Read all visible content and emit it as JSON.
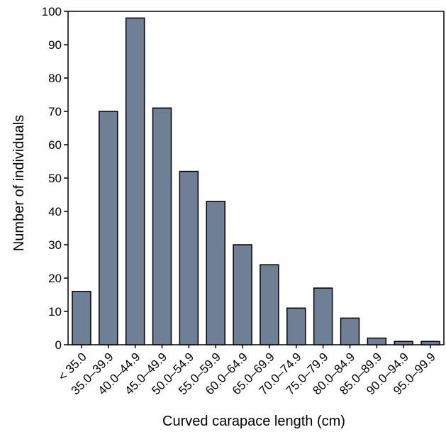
{
  "chart_data": {
    "type": "bar",
    "xlabel": "Curved carapace length (cm)",
    "ylabel": "Number of individuals",
    "ylim": [
      0,
      100
    ],
    "yticks": [
      0,
      10,
      20,
      30,
      40,
      50,
      60,
      70,
      80,
      90,
      100
    ],
    "categories": [
      "< 35.0",
      "35.0–39.9",
      "40.0–44.9",
      "45.0–49.9",
      "50.0–54.9",
      "55.0–59.9",
      "60.0–64.9",
      "65.0–69.9",
      "70.0–74.9",
      "75.0–79.9",
      "80.0–84.9",
      "85.0–89.9",
      "90.0–94.9",
      "95.0–99.9"
    ],
    "values": [
      16,
      70,
      98,
      71,
      52,
      43,
      30,
      24,
      11,
      17,
      8,
      2,
      1,
      1
    ],
    "grid": false,
    "bar_color": "#6f7f95",
    "bar_edge_color": "#000000"
  }
}
